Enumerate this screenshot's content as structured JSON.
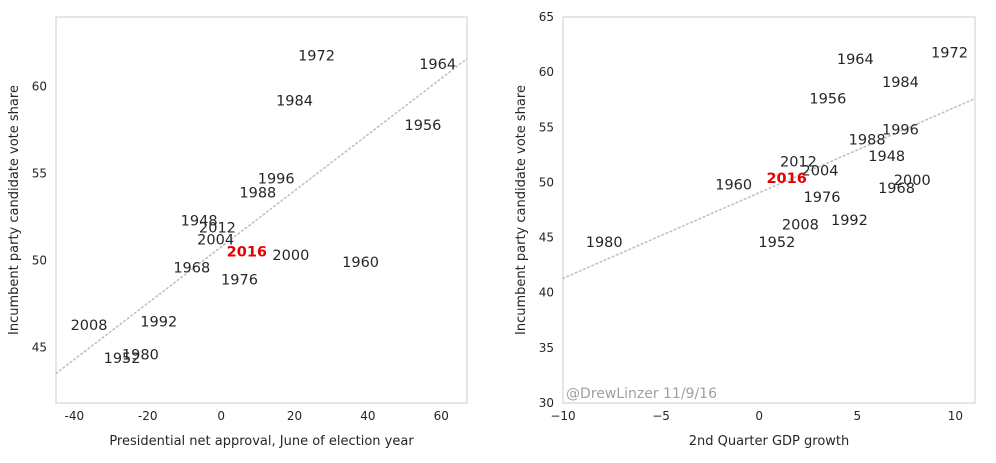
{
  "chart_data": [
    {
      "type": "scatter",
      "xlabel": "Presidential net approval, June of election year",
      "ylabel": "Incumbent party candidate vote share",
      "xlim": [
        -45,
        67
      ],
      "ylim": [
        41.8,
        64
      ],
      "xticks": [
        -40,
        -20,
        0,
        20,
        40,
        60
      ],
      "yticks": [
        45,
        50,
        55,
        60
      ],
      "grid": false,
      "highlight": "2016",
      "trendline": {
        "style": "dotted",
        "color": "#c0c0c0",
        "from": [
          -45,
          43.5
        ],
        "to": [
          67,
          61.6
        ]
      },
      "points": [
        {
          "label": "1972",
          "x": 26,
          "y": 61.8
        },
        {
          "label": "1964",
          "x": 59,
          "y": 61.3
        },
        {
          "label": "1984",
          "x": 20,
          "y": 59.2
        },
        {
          "label": "1956",
          "x": 55,
          "y": 57.8
        },
        {
          "label": "1996",
          "x": 15,
          "y": 54.7
        },
        {
          "label": "1988",
          "x": 10,
          "y": 53.9
        },
        {
          "label": "1948",
          "x": -6,
          "y": 52.3
        },
        {
          "label": "2012",
          "x": -1,
          "y": 51.9
        },
        {
          "label": "2004",
          "x": -1.5,
          "y": 51.2
        },
        {
          "label": "2016",
          "x": 7,
          "y": 50.5
        },
        {
          "label": "2000",
          "x": 19,
          "y": 50.3
        },
        {
          "label": "1960",
          "x": 38,
          "y": 49.9
        },
        {
          "label": "1968",
          "x": -8,
          "y": 49.6
        },
        {
          "label": "1976",
          "x": 5,
          "y": 48.9
        },
        {
          "label": "2008",
          "x": -36,
          "y": 46.3
        },
        {
          "label": "1992",
          "x": -17,
          "y": 46.5
        },
        {
          "label": "1980",
          "x": -22,
          "y": 44.6
        },
        {
          "label": "1952",
          "x": -27,
          "y": 44.4
        }
      ]
    },
    {
      "type": "scatter",
      "xlabel": "2nd Quarter GDP growth",
      "ylabel": "Incumbent party candidate vote share",
      "xlim": [
        -10,
        11
      ],
      "ylim": [
        30,
        65
      ],
      "xticks": [
        -10,
        -5,
        0,
        5,
        10
      ],
      "xtick_labels": [
        "−10",
        "−5",
        "0",
        "5",
        "10"
      ],
      "yticks": [
        30,
        35,
        40,
        45,
        50,
        55,
        60,
        65
      ],
      "grid": false,
      "highlight": "2016",
      "annotation": "@DrewLinzer 11/9/16",
      "trendline": {
        "style": "dotted",
        "color": "#c0c0c0",
        "from": [
          -10,
          41.3
        ],
        "to": [
          11,
          57.6
        ]
      },
      "points": [
        {
          "label": "1972",
          "x": 9.7,
          "y": 61.8
        },
        {
          "label": "1964",
          "x": 4.9,
          "y": 61.2
        },
        {
          "label": "1984",
          "x": 7.2,
          "y": 59.1
        },
        {
          "label": "1956",
          "x": 3.5,
          "y": 57.6
        },
        {
          "label": "1996",
          "x": 7.2,
          "y": 54.8
        },
        {
          "label": "1988",
          "x": 5.5,
          "y": 53.9
        },
        {
          "label": "1948",
          "x": 6.5,
          "y": 52.4
        },
        {
          "label": "2012",
          "x": 2,
          "y": 51.9
        },
        {
          "label": "2004",
          "x": 3.1,
          "y": 51.1
        },
        {
          "label": "2016",
          "x": 1.4,
          "y": 50.4
        },
        {
          "label": "1960",
          "x": -1.3,
          "y": 49.8
        },
        {
          "label": "2000",
          "x": 7.8,
          "y": 50.2
        },
        {
          "label": "1968",
          "x": 7,
          "y": 49.5
        },
        {
          "label": "1976",
          "x": 3.2,
          "y": 48.7
        },
        {
          "label": "2008",
          "x": 2.1,
          "y": 46.2
        },
        {
          "label": "1992",
          "x": 4.6,
          "y": 46.6
        },
        {
          "label": "1952",
          "x": 0.9,
          "y": 44.6
        },
        {
          "label": "1980",
          "x": -7.9,
          "y": 44.6
        }
      ]
    }
  ]
}
